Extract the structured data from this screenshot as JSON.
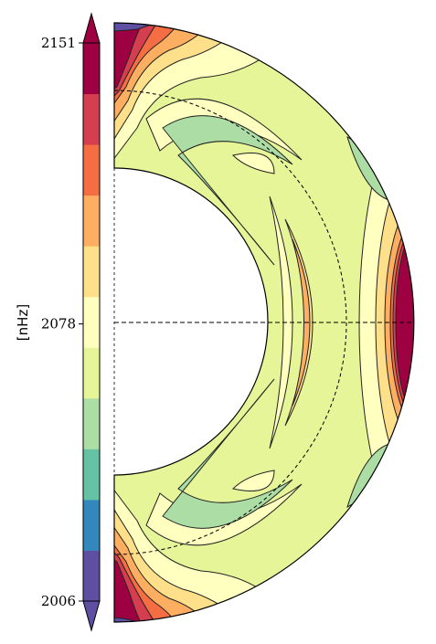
{
  "chart_data": {
    "type": "heatmap",
    "subtype": "meridional-half-disk-contour",
    "colorbar": {
      "label": "[nHz]",
      "ticks": [
        {
          "value": 2151,
          "label": "2151"
        },
        {
          "value": 2078,
          "label": "2078"
        },
        {
          "value": 2006,
          "label": "2006"
        }
      ],
      "range": [
        2006,
        2151
      ],
      "levels": 11,
      "extend": "both",
      "colormap": "Spectral_r",
      "level_colors": [
        "#5e4fa2",
        "#3288bd",
        "#66c2a5",
        "#abdda4",
        "#e6f598",
        "#ffffbf",
        "#fee08b",
        "#fdae61",
        "#f46d43",
        "#d53e4f",
        "#9e0142"
      ]
    },
    "annotations": {
      "equator_line": "dashed",
      "rotation_axis": "dashed",
      "inner_dashed_circle": true
    },
    "structure": {
      "equator_value_nHz": 2151,
      "pole_value_nHz": 2151,
      "midlatitude_band_value_nHz": 2040,
      "background_value_nHz": 2075
    }
  }
}
